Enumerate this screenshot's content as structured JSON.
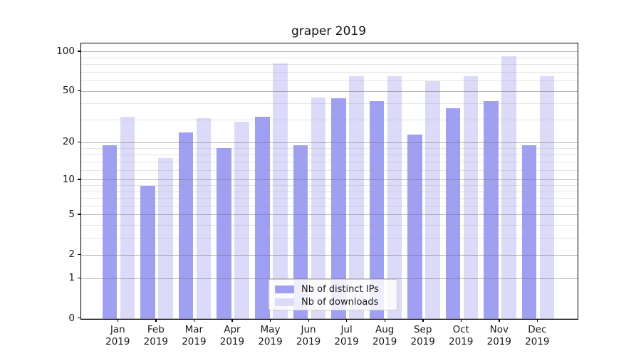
{
  "title": "graper 2019",
  "chart_data": {
    "type": "bar",
    "title": "graper 2019",
    "categories": [
      "Jan",
      "Feb",
      "Mar",
      "Apr",
      "May",
      "Jun",
      "Jul",
      "Aug",
      "Sep",
      "Oct",
      "Nov",
      "Dec"
    ],
    "year_label": "2019",
    "series": [
      {
        "name": "Nb of distinct IPs",
        "color": "#a0a0f2",
        "values": [
          19,
          9,
          24,
          18,
          32,
          19,
          44,
          42,
          23,
          37,
          42,
          19
        ]
      },
      {
        "name": "Nb of downloads",
        "color": "#dbdbf9",
        "values": [
          32,
          15,
          31,
          29,
          82,
          45,
          65,
          65,
          60,
          65,
          92,
          65
        ]
      }
    ],
    "xlabel": "",
    "ylabel": "",
    "yscale": "log1p",
    "y_major_ticks": [
      0,
      1,
      2,
      5,
      10,
      20,
      50,
      100
    ],
    "y_minor_gridlines": [
      3,
      4,
      6,
      7,
      8,
      9,
      12,
      14,
      16,
      18,
      30,
      40,
      60,
      70,
      80,
      90
    ],
    "ylim": [
      0,
      115
    ],
    "grid": "major+minor horizontal, drawn above bars",
    "legend_position": "lower center inside axes"
  }
}
